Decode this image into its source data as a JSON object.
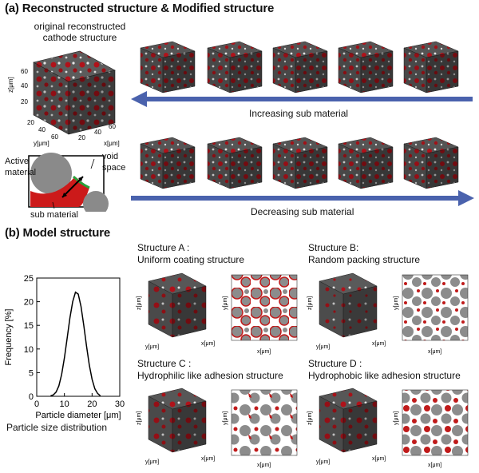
{
  "panel_a": {
    "title": "(a) Reconstructed structure &  Modified structure",
    "original_label": "original reconstructed cathode structure",
    "axes": {
      "z_label": "z[μm]",
      "y_label": "y[μm]",
      "x_label": "x[μm]",
      "z_ticks": [
        "20",
        "40",
        "60"
      ],
      "y_ticks": [
        "20",
        "40",
        "60"
      ],
      "x_ticks": [
        "20",
        "40",
        "60"
      ]
    },
    "legend": {
      "active": "Active material",
      "void": "void space",
      "sub": "sub material"
    },
    "increasing": "Increasing sub material",
    "decreasing": "Decreasing sub material"
  },
  "panel_b": {
    "title": "(b) Model structure",
    "structure_a": {
      "name": "Structure A :",
      "desc": "Uniform coating structure"
    },
    "structure_b": {
      "name": "Structure B:",
      "desc": "Random packing structure"
    },
    "structure_c": {
      "name": "Structure C :",
      "desc": "Hydrophilic like adhesion structure"
    },
    "structure_d": {
      "name": "Structure D :",
      "desc": "Hydrophobic like adhesion structure"
    },
    "cube_axes": {
      "z_label": "z[μm]",
      "y_label": "y[μm]",
      "x_label": "x[μm]",
      "ticks": [
        "20",
        "40",
        "60",
        "80"
      ]
    },
    "slice_axes": {
      "y_label": "y[μm]",
      "x_label": "x[μm]",
      "x_ticks": [
        "0",
        "20",
        "40",
        "60",
        "80"
      ],
      "y_ticks": [
        "0",
        "20",
        "40",
        "60",
        "80"
      ]
    },
    "psd_caption": "Particle size distribution"
  },
  "colors": {
    "solid": "#5b5b5b",
    "solid_dark": "#3a3a3a",
    "sub": "#b0121a",
    "arrow": "#4a62ad",
    "void": "#ffffff"
  },
  "chart_data": {
    "type": "line",
    "xlabel": "Particle diameter [μm]",
    "ylabel": "Frequency [%]",
    "xlim": [
      0,
      30
    ],
    "ylim": [
      0,
      25
    ],
    "x_ticks": [
      0,
      10,
      20,
      30
    ],
    "y_ticks": [
      0,
      5,
      10,
      15,
      20,
      25
    ],
    "series": [
      {
        "x": [
          5,
          6,
          7,
          8,
          9,
          10,
          11,
          12,
          13,
          14,
          15,
          16,
          17,
          18,
          19,
          20,
          21,
          22,
          23
        ],
        "values": [
          0.1,
          0.3,
          0.9,
          2.2,
          4.6,
          8.1,
          12.3,
          16.6,
          20.0,
          22.0,
          21.6,
          19.0,
          15.0,
          10.6,
          6.6,
          3.6,
          1.6,
          0.6,
          0.1
        ]
      }
    ]
  }
}
